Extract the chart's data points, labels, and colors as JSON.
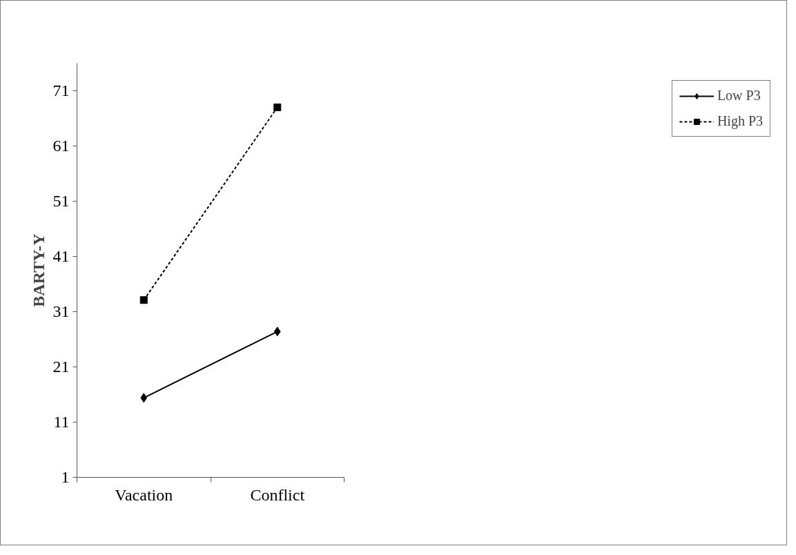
{
  "chart_data": {
    "type": "line",
    "ylabel": "BARTY-Y",
    "categories": [
      "Vacation",
      "Conflict"
    ],
    "series": [
      {
        "name": "Low P3",
        "color": "#000000",
        "values": [
          15.4,
          27.4
        ],
        "marker": "diamond",
        "line_style": "solid"
      },
      {
        "name": "High P3",
        "color": "#000000",
        "values": [
          33.1,
          68.0
        ],
        "marker": "square",
        "line_style": "dashed"
      }
    ],
    "ylim": [
      1,
      76
    ],
    "yticks": [
      1,
      11,
      21,
      31,
      41,
      51,
      61,
      71
    ],
    "grid": false,
    "legend": "right"
  }
}
